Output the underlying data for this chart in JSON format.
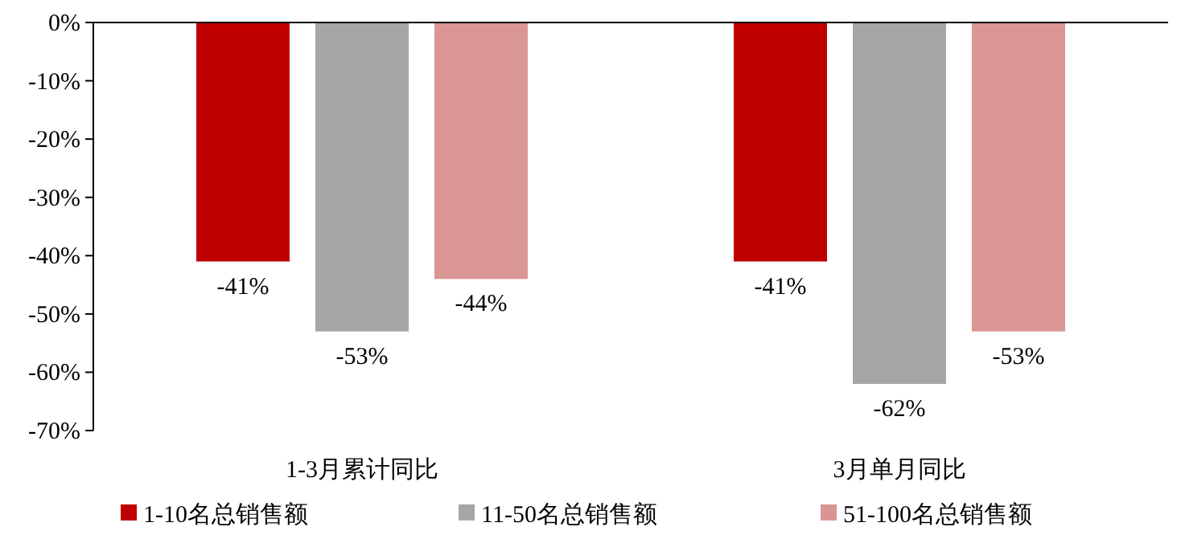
{
  "chart_data": {
    "type": "bar",
    "categories": [
      "1-3月累计同比",
      "3月单月同比"
    ],
    "series": [
      {
        "name": "1-10名总销售额",
        "color": "#c00000",
        "values": [
          -41,
          -41
        ],
        "value_labels": [
          "-41%",
          "-41%"
        ]
      },
      {
        "name": "11-50名总销售额",
        "color": "#a6a6a6",
        "values": [
          -53,
          -62
        ],
        "value_labels": [
          "-53%",
          "-62%"
        ]
      },
      {
        "name": "51-100名总销售额",
        "color": "#d99694",
        "values": [
          -44,
          -53
        ],
        "value_labels": [
          "-44%",
          "-53%"
        ]
      }
    ],
    "ylim": [
      -70,
      0
    ],
    "yticks": [
      {
        "value": 0,
        "label": "0%"
      },
      {
        "value": -10,
        "label": "-10%"
      },
      {
        "value": -20,
        "label": "-20%"
      },
      {
        "value": -30,
        "label": "-30%"
      },
      {
        "value": -40,
        "label": "-40%"
      },
      {
        "value": -50,
        "label": "-50%"
      },
      {
        "value": -60,
        "label": "-60%"
      },
      {
        "value": -70,
        "label": "-70%"
      }
    ],
    "grid": false,
    "legend": "bottom"
  }
}
